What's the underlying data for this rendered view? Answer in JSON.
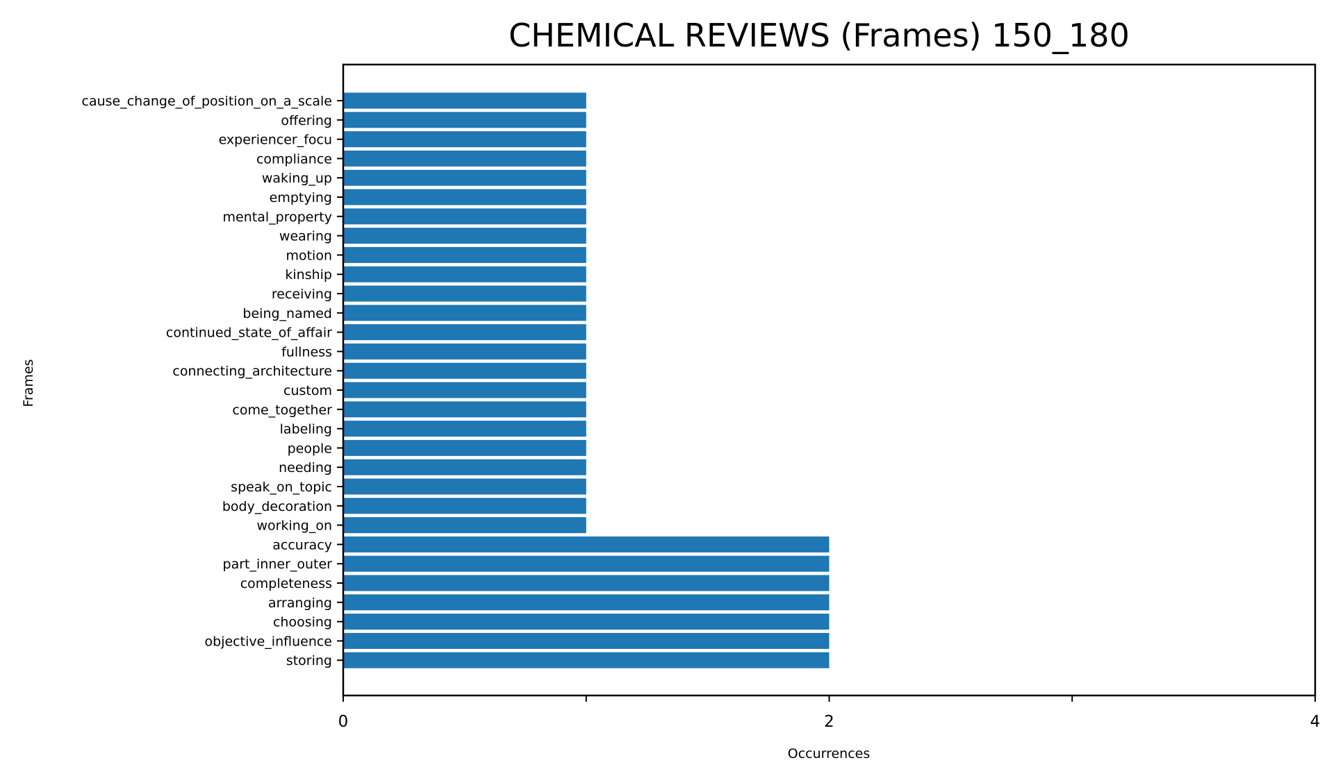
{
  "chart_data": {
    "type": "bar",
    "orientation": "horizontal",
    "title": "CHEMICAL REVIEWS (Frames) 150_180",
    "xlabel": "Occurrences",
    "ylabel": "Frames",
    "xlim": [
      0,
      4
    ],
    "xticks": [
      0,
      1,
      2,
      3,
      4
    ],
    "xtick_labels": [
      "0",
      "",
      "2",
      "",
      "4"
    ],
    "grid": false,
    "bar_color": "#1f77b4",
    "categories": [
      "cause_change_of_position_on_a_scale",
      "offering",
      "experiencer_focu",
      "compliance",
      "waking_up",
      "emptying",
      "mental_property",
      "wearing",
      "motion",
      "kinship",
      "receiving",
      "being_named",
      "continued_state_of_affair",
      "fullness",
      "connecting_architecture",
      "custom",
      "come_together",
      "labeling",
      "people",
      "needing",
      "speak_on_topic",
      "body_decoration",
      "working_on",
      "accuracy",
      "part_inner_outer",
      "completeness",
      "arranging",
      "choosing",
      "objective_influence",
      "storing"
    ],
    "values": [
      1,
      1,
      1,
      1,
      1,
      1,
      1,
      1,
      1,
      1,
      1,
      1,
      1,
      1,
      1,
      1,
      1,
      1,
      1,
      1,
      1,
      1,
      1,
      2,
      2,
      2,
      2,
      2,
      2,
      2
    ]
  }
}
